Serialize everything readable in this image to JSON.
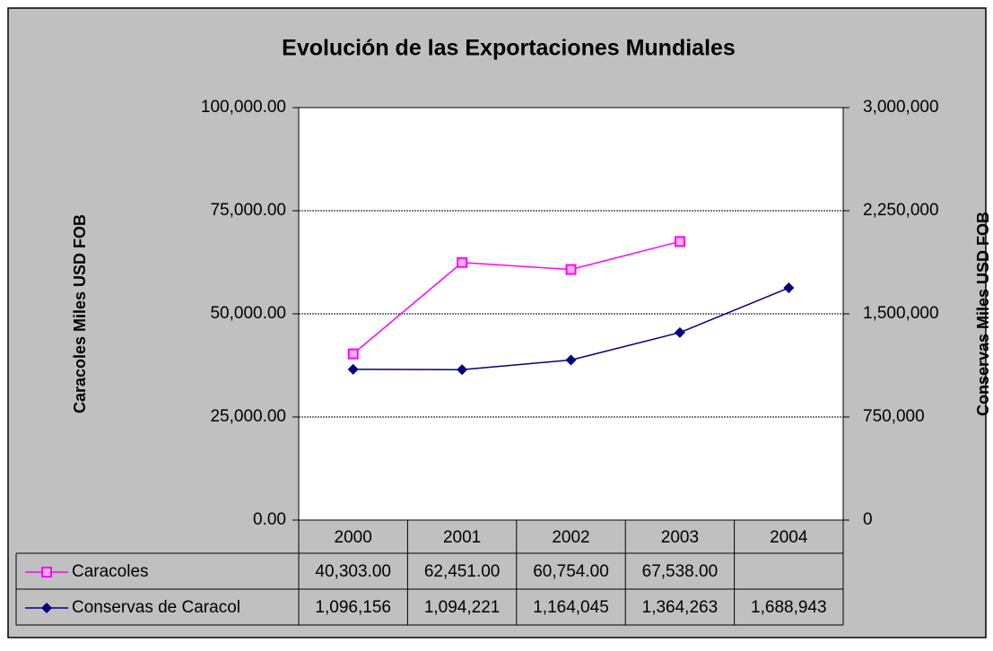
{
  "chart_data": {
    "type": "line",
    "title": "Evolución de las Exportaciones Mundiales",
    "ylabel": "Caracoles Miles USD FOB",
    "y2label": "Conservas Miles USD FOB",
    "categories": [
      "2000",
      "2001",
      "2002",
      "2003",
      "2004"
    ],
    "series": [
      {
        "name": "Caracoles",
        "color": "#ff00ff",
        "marker": "square",
        "values": [
          40303,
          62451,
          60754,
          67538,
          null
        ],
        "value_labels": [
          "40,303.00",
          "62,451.00",
          "60,754.00",
          "67,538.00",
          null
        ]
      },
      {
        "name": "Conservas de Caracol",
        "color": "#000080",
        "marker": "diamond",
        "axis": "y2",
        "values": [
          1096156,
          1094221,
          1164045,
          1364263,
          1688943
        ],
        "value_labels": [
          "1,096,156",
          "1,094,221",
          "1,164,045",
          "1,364,263",
          "1,688,943"
        ]
      }
    ],
    "ylim": [
      0,
      100000
    ],
    "yticks": [
      {
        "value": 0,
        "label": "0.00"
      },
      {
        "value": 25000,
        "label": "25,000.00"
      },
      {
        "value": 50000,
        "label": "50,000.00"
      },
      {
        "value": 75000,
        "label": "75,000.00"
      },
      {
        "value": 100000,
        "label": "100,000.00"
      }
    ],
    "y2lim": [
      0,
      3000000
    ],
    "y2ticks": [
      0,
      {
        "value": 750000,
        "label": "750,000"
      },
      {
        "value": 1500000,
        "label": "1,500,000"
      },
      {
        "value": 2250000,
        "label": "2,250,000"
      },
      {
        "value": 3000000,
        "label": "3,000,000"
      }
    ],
    "grid": true
  }
}
